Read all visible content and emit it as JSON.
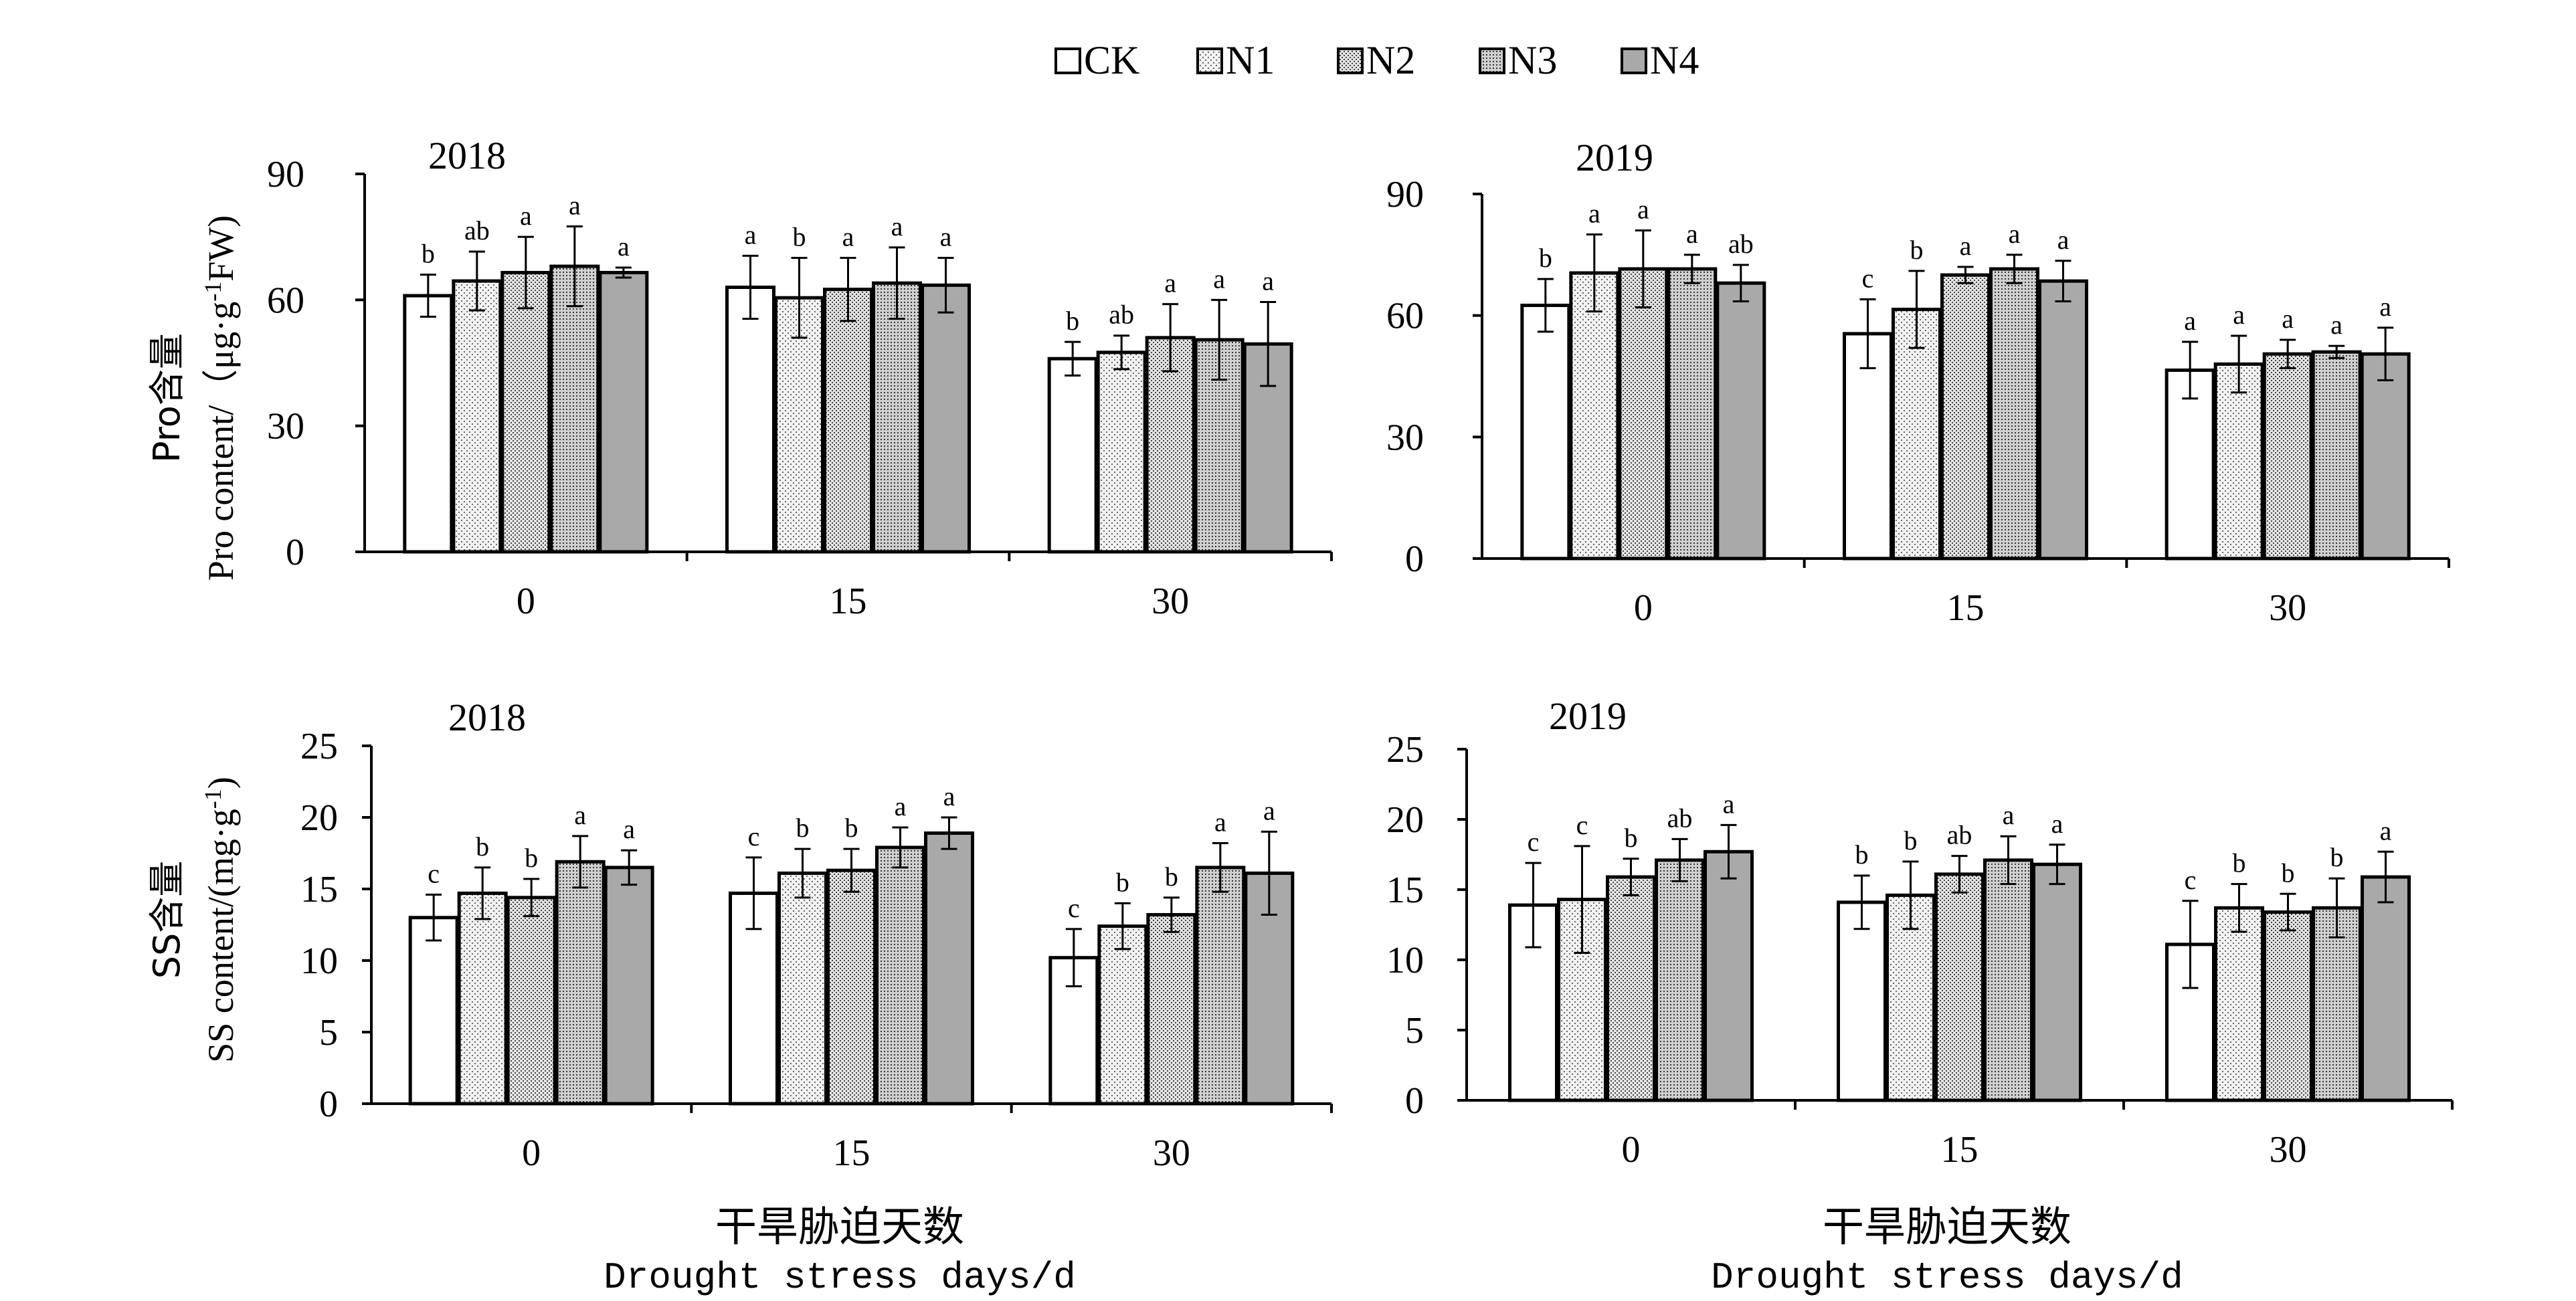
{
  "legend": [
    "CK",
    "N1",
    "N2",
    "N3",
    "N4"
  ],
  "colors": {
    "CK": "#ffffff",
    "N1": "#f1f1f1",
    "N2": "#e2e2e2",
    "N3": "#cfcfcf",
    "N4": "#a9a9a9",
    "axis": "#000000"
  },
  "y_labels": {
    "pro": {
      "cn": "Pro含量",
      "en_prefix": "Pro content/（μg·g",
      "en_sup": "-1",
      "en_suffix": "FW)"
    },
    "ss": {
      "cn": "SS含量",
      "en_prefix": "SS content/(mg·g",
      "en_sup": "-1",
      "en_suffix": ")"
    }
  },
  "x_labels": {
    "left": {
      "cn": "干旱胁迫天数",
      "en": "Drought stress days/d"
    },
    "right": {
      "cn": "干旱胁迫天数",
      "en": "Drought stress days/d"
    }
  },
  "chart_data": [
    {
      "id": "pro-2018",
      "type": "bar",
      "title": "2018",
      "ylabel": "Pro含量 Pro content/（μg·g-1FW)",
      "categories": [
        "0",
        "15",
        "30"
      ],
      "yticks": [
        0,
        30,
        60,
        90
      ],
      "ylim": [
        0,
        90
      ],
      "series": [
        {
          "name": "CK",
          "values": [
            61,
            63,
            46
          ],
          "errors": [
            5,
            7.5,
            4
          ],
          "letters": [
            "b",
            "a",
            "b"
          ]
        },
        {
          "name": "N1",
          "values": [
            64.5,
            60.5,
            47.5
          ],
          "errors": [
            7,
            9.5,
            4
          ],
          "letters": [
            "ab",
            "b",
            "ab"
          ]
        },
        {
          "name": "N2",
          "values": [
            66.5,
            62.5,
            51
          ],
          "errors": [
            8.5,
            7.5,
            8
          ],
          "letters": [
            "a",
            "a",
            "a"
          ]
        },
        {
          "name": "N3",
          "values": [
            68,
            64,
            50.5
          ],
          "errors": [
            9.5,
            8.5,
            9.5
          ],
          "letters": [
            "a",
            "a",
            "a"
          ]
        },
        {
          "name": "N4",
          "values": [
            66.5,
            63.5,
            49.5
          ],
          "errors": [
            1.2,
            6.5,
            10
          ],
          "letters": [
            "a",
            "a",
            "a"
          ]
        }
      ]
    },
    {
      "id": "pro-2019",
      "type": "bar",
      "title": "2019",
      "ylabel": "",
      "categories": [
        "0",
        "15",
        "30"
      ],
      "yticks": [
        0,
        30,
        60,
        90
      ],
      "ylim": [
        0,
        90
      ],
      "series": [
        {
          "name": "CK",
          "values": [
            62.5,
            55.5,
            46.5
          ],
          "errors": [
            6.5,
            8.5,
            7
          ],
          "letters": [
            "b",
            "c",
            "a"
          ]
        },
        {
          "name": "N1",
          "values": [
            70.5,
            61.5,
            48
          ],
          "errors": [
            9.5,
            9.5,
            7
          ],
          "letters": [
            "a",
            "b",
            "a"
          ]
        },
        {
          "name": "N2",
          "values": [
            71.5,
            70,
            50.5
          ],
          "errors": [
            9.5,
            2,
            3.5
          ],
          "letters": [
            "a",
            "a",
            "a"
          ]
        },
        {
          "name": "N3",
          "values": [
            71.5,
            71.5,
            51
          ],
          "errors": [
            3.5,
            3.5,
            1.5
          ],
          "letters": [
            "a",
            "a",
            "a"
          ]
        },
        {
          "name": "N4",
          "values": [
            68,
            68.5,
            50.5
          ],
          "errors": [
            4.5,
            5,
            6.5
          ],
          "letters": [
            "ab",
            "a",
            "a"
          ]
        }
      ]
    },
    {
      "id": "ss-2018",
      "type": "bar",
      "title": "2018",
      "ylabel": "SS含量 SS content/(mg·g-1)",
      "categories": [
        "0",
        "15",
        "30"
      ],
      "yticks": [
        0,
        5,
        10,
        15,
        20,
        25
      ],
      "ylim": [
        0,
        25
      ],
      "series": [
        {
          "name": "CK",
          "values": [
            13,
            14.7,
            10.2
          ],
          "errors": [
            1.6,
            2.5,
            2
          ],
          "letters": [
            "c",
            "c",
            "c"
          ]
        },
        {
          "name": "N1",
          "values": [
            14.7,
            16.1,
            12.4
          ],
          "errors": [
            1.8,
            1.7,
            1.6
          ],
          "letters": [
            "b",
            "b",
            "b"
          ]
        },
        {
          "name": "N2",
          "values": [
            14.4,
            16.3,
            13.2
          ],
          "errors": [
            1.3,
            1.5,
            1.2
          ],
          "letters": [
            "b",
            "b",
            "b"
          ]
        },
        {
          "name": "N3",
          "values": [
            16.9,
            17.9,
            16.5
          ],
          "errors": [
            1.8,
            1.4,
            1.7
          ],
          "letters": [
            "a",
            "a",
            "a"
          ]
        },
        {
          "name": "N4",
          "values": [
            16.5,
            18.9,
            16.1
          ],
          "errors": [
            1.2,
            1.1,
            2.9
          ],
          "letters": [
            "a",
            "a",
            "a"
          ]
        }
      ]
    },
    {
      "id": "ss-2019",
      "type": "bar",
      "title": "2019",
      "ylabel": "",
      "categories": [
        "0",
        "15",
        "30"
      ],
      "yticks": [
        0,
        5,
        10,
        15,
        20,
        25
      ],
      "ylim": [
        0,
        25
      ],
      "series": [
        {
          "name": "CK",
          "values": [
            13.9,
            14.1,
            11.1
          ],
          "errors": [
            3,
            1.9,
            3.1
          ],
          "letters": [
            "c",
            "b",
            "c"
          ]
        },
        {
          "name": "N1",
          "values": [
            14.3,
            14.6,
            13.7
          ],
          "errors": [
            3.8,
            2.4,
            1.7
          ],
          "letters": [
            "c",
            "b",
            "b"
          ]
        },
        {
          "name": "N2",
          "values": [
            15.9,
            16.1,
            13.4
          ],
          "errors": [
            1.3,
            1.3,
            1.3
          ],
          "letters": [
            "b",
            "ab",
            "b"
          ]
        },
        {
          "name": "N3",
          "values": [
            17.1,
            17.1,
            13.7
          ],
          "errors": [
            1.5,
            1.7,
            2.1
          ],
          "letters": [
            "ab",
            "a",
            "b"
          ]
        },
        {
          "name": "N4",
          "values": [
            17.7,
            16.8,
            15.9
          ],
          "errors": [
            1.9,
            1.4,
            1.8
          ],
          "letters": [
            "a",
            "a",
            "a"
          ]
        }
      ]
    }
  ]
}
